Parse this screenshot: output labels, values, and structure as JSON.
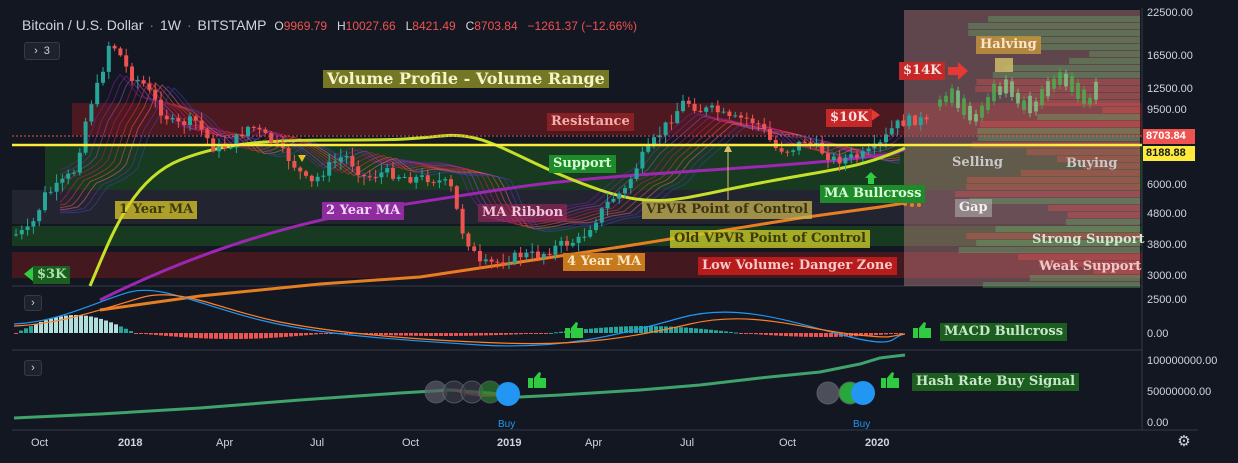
{
  "header": {
    "symbol": "Bitcoin / U.S. Dollar",
    "interval": "1W",
    "exchange": "BITSTAMP",
    "open_label": "O",
    "open": "9969.79",
    "high_label": "H",
    "high": "10027.66",
    "low_label": "L",
    "low": "8421.49",
    "close_label": "C",
    "close": "8703.84",
    "change": "−1261.37 (−12.66%)",
    "indicators_count": "3"
  },
  "colors": {
    "background": "#131722",
    "up": "#26a69a",
    "down": "#ef5350",
    "support": "#1b5e20",
    "resistance": "#b71c1c",
    "ma_1y": "#c6e02a",
    "ma_2y": "#9c27b0",
    "ma_4y": "#e67e22",
    "hash_rate": "#3fa36b",
    "macd_line": "#2196f3",
    "signal_line": "#ff7f27"
  },
  "price_axis": [
    "22500.00",
    "16500.00",
    "12500.00",
    "9500.00",
    "6000.00",
    "4800.00",
    "3800.00",
    "3000.00"
  ],
  "price_tags": {
    "last": "8703.84",
    "level": "8188.88"
  },
  "macd_axis": [
    "2500.00",
    "0.00"
  ],
  "hash_axis": [
    "100000000.00",
    "50000000.00",
    "0.00"
  ],
  "time_axis": [
    {
      "label": "Oct",
      "bold": false
    },
    {
      "label": "2018",
      "bold": true
    },
    {
      "label": "Apr",
      "bold": false
    },
    {
      "label": "Jul",
      "bold": false
    },
    {
      "label": "Oct",
      "bold": false
    },
    {
      "label": "2019",
      "bold": true
    },
    {
      "label": "Apr",
      "bold": false
    },
    {
      "label": "Jul",
      "bold": false
    },
    {
      "label": "Oct",
      "bold": false
    },
    {
      "label": "2020",
      "bold": true
    }
  ],
  "annotations": {
    "volume_profile": "Volume Profile - Volume Range",
    "resistance": "Resistance",
    "support": "Support",
    "ma_1y": "1 Year MA",
    "ma_2y": "2 Year MA",
    "ma_ribbon": "MA Ribbon",
    "ma_4y": "4 Year MA",
    "vpvr_poc": "VPVR Point of Control",
    "old_vpvr_poc": "Old VPVR Point of Control",
    "low_volume": "Low Volume: Danger Zone",
    "price_10k": "$10K",
    "price_14k": "$14K",
    "price_3k": "$3K",
    "halving": "Halving",
    "selling": "Selling",
    "buying": "Buying",
    "ma_bullcross": "MA Bullcross",
    "gap": "Gap",
    "strong_support": "Strong Support",
    "weak_support": "Weak Support",
    "macd_bullcross": "MACD Bullcross",
    "hash_rate_signal": "Hash Rate Buy Signal",
    "buy_1": "Buy",
    "buy_2": "Buy"
  }
}
